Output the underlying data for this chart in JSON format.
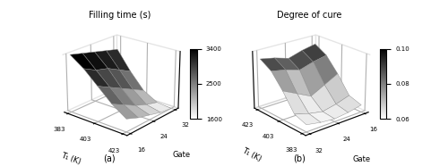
{
  "title_a": "Filling time (s)",
  "title_b": "Degree of cure",
  "label_a": "(a)",
  "label_b": "(b)",
  "T1_values": [
    383,
    393,
    403,
    413,
    423
  ],
  "gate_values": [
    16,
    20,
    24,
    28,
    32
  ],
  "filling_time": [
    [
      3400,
      3300,
      3200,
      3100,
      3000
    ],
    [
      3100,
      2900,
      2800,
      2600,
      2400
    ],
    [
      2700,
      2500,
      2300,
      2100,
      1900
    ],
    [
      2300,
      2100,
      1900,
      1750,
      1650
    ],
    [
      2000,
      1850,
      1750,
      1650,
      1600
    ]
  ],
  "degree_of_cure": [
    [
      0.065,
      0.063,
      0.062,
      0.063,
      0.065
    ],
    [
      0.068,
      0.065,
      0.063,
      0.065,
      0.068
    ],
    [
      0.08,
      0.075,
      0.07,
      0.075,
      0.08
    ],
    [
      0.09,
      0.088,
      0.085,
      0.088,
      0.09
    ],
    [
      0.095,
      0.093,
      0.09,
      0.093,
      0.095
    ]
  ],
  "filling_zlim": [
    1600,
    3400
  ],
  "cure_zlim": [
    0.06,
    0.1
  ],
  "colorbar_ticks_a": [
    1600,
    2500,
    3400
  ],
  "colorbar_ticks_b": [
    0.06,
    0.08,
    0.1
  ],
  "T1_ticks": [
    383,
    403,
    423
  ],
  "gate_ticks": [
    16,
    24,
    32
  ],
  "figsize": [
    5.0,
    1.86
  ],
  "dpi": 100,
  "elev_a": 22,
  "azim_a": -50,
  "elev_b": 22,
  "azim_b": -130
}
